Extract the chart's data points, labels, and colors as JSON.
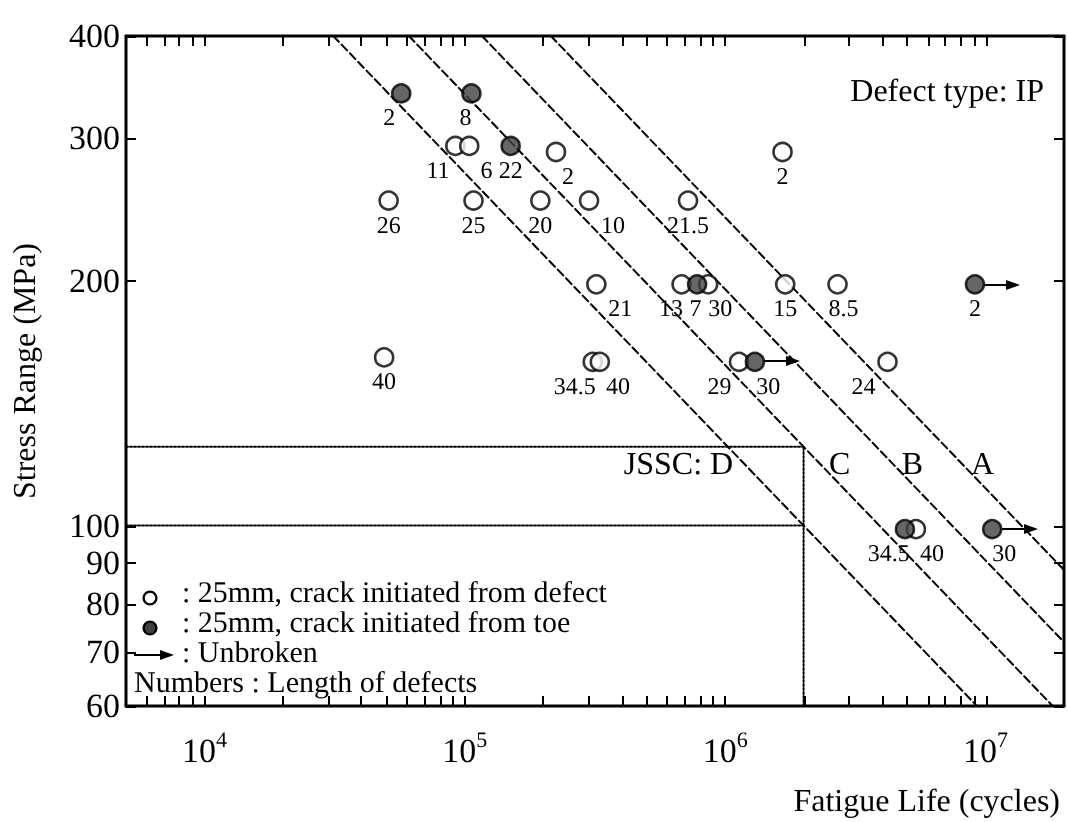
{
  "chart_data": {
    "type": "scatter",
    "xlabel": "Fatigue Life (cycles)",
    "ylabel": "Stress Range (MPa)",
    "log": "xy",
    "grid": false,
    "legend": "bottom left",
    "xlim": [
      5000,
      20000000
    ],
    "ylim": [
      60,
      400
    ],
    "xticks": [
      {
        "value": 6000,
        "label": null
      },
      {
        "value": 7000,
        "label": null
      },
      {
        "value": 8000,
        "label": null
      },
      {
        "value": 9000,
        "label": null
      },
      {
        "value": 10000,
        "label": "10$^{4}$"
      },
      {
        "value": 20000,
        "label": null
      },
      {
        "value": 30000,
        "label": null
      },
      {
        "value": 40000,
        "label": null
      },
      {
        "value": 50000,
        "label": null
      },
      {
        "value": 60000,
        "label": null
      },
      {
        "value": 70000,
        "label": null
      },
      {
        "value": 80000,
        "label": null
      },
      {
        "value": 90000,
        "label": null
      },
      {
        "value": 100000,
        "label": "10$^{5}$"
      },
      {
        "value": 200000,
        "label": null
      },
      {
        "value": 300000,
        "label": null
      },
      {
        "value": 400000,
        "label": null
      },
      {
        "value": 500000,
        "label": null
      },
      {
        "value": 600000,
        "label": null
      },
      {
        "value": 700000,
        "label": null
      },
      {
        "value": 800000,
        "label": null
      },
      {
        "value": 900000,
        "label": null
      },
      {
        "value": 1000000,
        "label": "10$^{6}$"
      },
      {
        "value": 2000000,
        "label": null
      },
      {
        "value": 3000000,
        "label": null
      },
      {
        "value": 4000000,
        "label": null
      },
      {
        "value": 5000000,
        "label": null
      },
      {
        "value": 6000000,
        "label": null
      },
      {
        "value": 7000000,
        "label": null
      },
      {
        "value": 8000000,
        "label": null
      },
      {
        "value": 9000000,
        "label": null
      },
      {
        "value": 10000000,
        "label": "10$^{7}$"
      }
    ],
    "yticks": [
      60,
      70,
      80,
      90,
      100,
      200,
      300,
      400
    ],
    "series": [
      {
        "name": ": 25mm, crack initiated from defect",
        "marker": "circle",
        "color": "#ffffff",
        "x": [
          92000,
          104000,
          51000,
          108000,
          49000,
          224000,
          195000,
          300000,
          720000,
          1660000,
          320000,
          680000,
          860000,
          1700000,
          2700000,
          310000,
          330000,
          1130000,
          4200000,
          5400000
        ],
        "values": [
          293,
          293,
          251,
          251,
          161,
          288,
          251,
          251,
          251,
          288,
          198,
          198,
          198,
          198,
          198,
          159,
          159,
          159,
          159,
          99
        ]
      },
      {
        "name": ": 25mm, crack initiated from toe",
        "marker": "circle",
        "color": "#404040",
        "x": [
          57000,
          106000,
          150000,
          780000,
          4900000
        ],
        "values": [
          340,
          340,
          293,
          198,
          99
        ]
      },
      {
        "marker": "circle",
        "line_style": "solid",
        "color": "#404040",
        "x": [
          9100000,
          1300000,
          10600000
        ],
        "values": [
          198,
          159,
          99
        ]
      },
      {
        "name": "JSSC: D",
        "type": "line",
        "line_style": "dashed",
        "marker": "none",
        "color": "#000000",
        "x": [
          31250,
          9260000
        ],
        "values": [
          400,
          60
        ]
      },
      {
        "name": "C",
        "type": "line",
        "line_style": "dashed",
        "marker": "none",
        "color": "#000000",
        "x": [
          61000,
          18100000
        ],
        "values": [
          400,
          60
        ]
      },
      {
        "name": "B",
        "type": "line",
        "line_style": "dashed",
        "marker": "none",
        "color": "#000000",
        "x": [
          116400,
          20000000
        ],
        "values": [
          400,
          71.9
        ]
      },
      {
        "name": "A",
        "type": "line",
        "line_style": "dashed",
        "marker": "none",
        "color": "#000000",
        "x": [
          214000,
          20000000
        ],
        "values": [
          400,
          88.2
        ]
      },
      {
        "type": "line",
        "line_style": "dotted",
        "marker": "none",
        "color": "#000000",
        "x": [
          5000,
          2000000
        ],
        "values": [
          125,
          125
        ]
      },
      {
        "type": "line",
        "line_style": "dotted",
        "marker": "none",
        "color": "#000000",
        "x": [
          5000,
          2000000
        ],
        "values": [
          100,
          100
        ]
      },
      {
        "type": "line",
        "line_style": "dotted",
        "marker": "none",
        "color": "#000000",
        "x": [
          2000000,
          2000000
        ],
        "values": [
          60,
          125
        ]
      }
    ],
    "annotations": [
      "Defect type: IP",
      ": Unbroken",
      "Numbers : Length of defects",
      {
        "text": "11",
        "x": 92000,
        "y": 293
      },
      {
        "text": "6",
        "x": 104000,
        "y": 293
      },
      {
        "text": "26",
        "x": 51000,
        "y": 251
      },
      {
        "text": "25",
        "x": 108000,
        "y": 251
      },
      {
        "text": "40",
        "x": 49000,
        "y": 161
      },
      {
        "text": "2",
        "x": 224000,
        "y": 288
      },
      {
        "text": "20",
        "x": 195000,
        "y": 251
      },
      {
        "text": "10",
        "x": 300000,
        "y": 251
      },
      {
        "text": "21.5",
        "x": 720000,
        "y": 251
      },
      {
        "text": "2",
        "x": 1660000,
        "y": 288
      },
      {
        "text": "21",
        "x": 320000,
        "y": 198
      },
      {
        "text": "13",
        "x": 680000,
        "y": 198
      },
      {
        "text": "30",
        "x": 860000,
        "y": 198
      },
      {
        "text": "15",
        "x": 1700000,
        "y": 198
      },
      {
        "text": "8.5",
        "x": 2700000,
        "y": 198
      },
      {
        "text": "34.5",
        "x": 310000,
        "y": 159
      },
      {
        "text": "40",
        "x": 330000,
        "y": 159
      },
      {
        "text": "29",
        "x": 1130000,
        "y": 159
      },
      {
        "text": "24",
        "x": 4200000,
        "y": 159
      },
      {
        "text": "40",
        "x": 5400000,
        "y": 99
      },
      {
        "text": "2",
        "x": 57000,
        "y": 340
      },
      {
        "text": "8",
        "x": 106000,
        "y": 340
      },
      {
        "text": "22",
        "x": 150000,
        "y": 293
      },
      {
        "text": "2",
        "x": 9100000,
        "y": 198
      },
      {
        "text": "30",
        "x": 1300000,
        "y": 159
      },
      {
        "text": "7",
        "x": 780000,
        "y": 198
      },
      {
        "text": "34.5",
        "x": 4900000,
        "y": 99
      },
      {
        "text": "30",
        "x": 10600000,
        "y": 99
      }
    ]
  }
}
